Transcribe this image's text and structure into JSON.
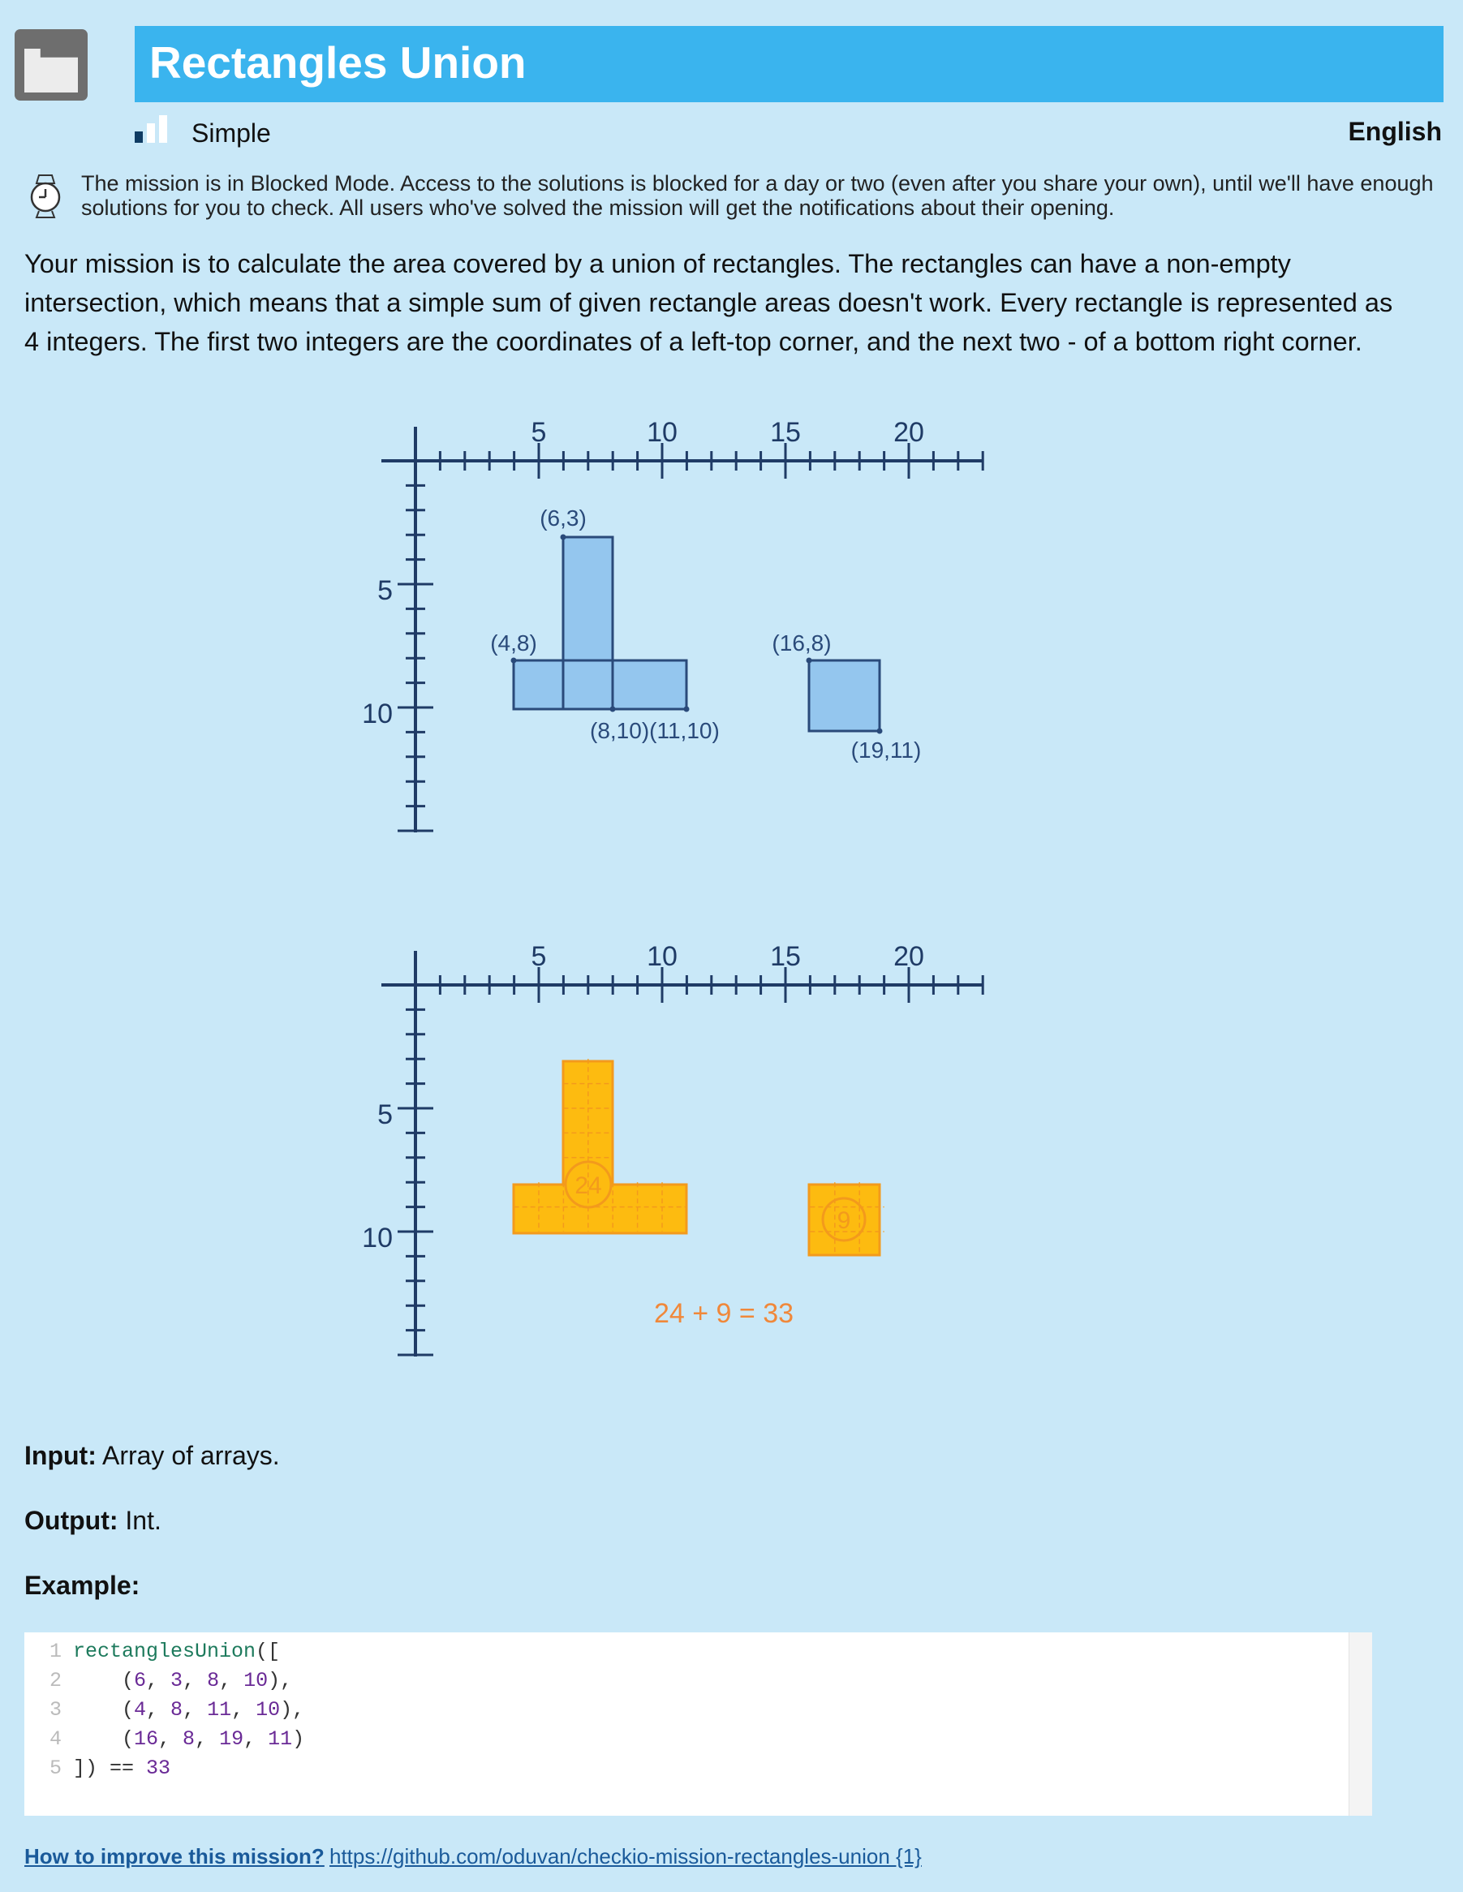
{
  "header": {
    "title": "Rectangles Union",
    "difficulty": "Simple",
    "language": "English",
    "accent_color": "#3ab4ee"
  },
  "notice": {
    "icon": "stopwatch-icon",
    "text": "The mission is in Blocked Mode. Access to the solutions is blocked for a day or two (even after you share your own), until we'll have enough solutions for you to check. All users who've solved the mission will get the notifications about their opening."
  },
  "description": "Your mission is to calculate the area covered by a union of rectangles. The rectangles can have a non-empty intersection, which means that a simple sum of given rectangle areas doesn't work. Every rectangle is represented as 4 integers. The first two integers are the coordinates of a left-top corner, and the next two - of a bottom right corner.",
  "illustration": {
    "x_ticks": [
      "5",
      "10",
      "15",
      "20"
    ],
    "y_ticks": [
      "5",
      "10"
    ],
    "rectangles": [
      {
        "x1": 6,
        "y1": 3,
        "x2": 8,
        "y2": 10
      },
      {
        "x1": 4,
        "y1": 8,
        "x2": 11,
        "y2": 10
      },
      {
        "x1": 16,
        "y1": 8,
        "x2": 19,
        "y2": 11
      }
    ],
    "point_labels": [
      "(6,3)",
      "(4,8)",
      "(8,10)(11,10)",
      "(16,8)",
      "(19,11)"
    ],
    "area_labels": [
      "24",
      "9"
    ],
    "sum_text": "24 + 9 = 33",
    "colors": {
      "first": "#94c6ee",
      "second": "#fdbb10"
    }
  },
  "io": {
    "input_label": "Input:",
    "input_text": "Array of arrays.",
    "output_label": "Output:",
    "output_text": "Int.",
    "example_label": "Example:"
  },
  "code": {
    "line_numbers": [
      "1",
      "2",
      "3",
      "4",
      "5"
    ],
    "fn_name": "rectanglesUnion",
    "lines": [
      [
        {
          "t": "fn",
          "v": "rectanglesUnion"
        },
        {
          "t": "p",
          "v": "(["
        }
      ],
      [
        {
          "t": "p",
          "v": "    ("
        },
        {
          "t": "n",
          "v": "6"
        },
        {
          "t": "p",
          "v": ", "
        },
        {
          "t": "n",
          "v": "3"
        },
        {
          "t": "p",
          "v": ", "
        },
        {
          "t": "n",
          "v": "8"
        },
        {
          "t": "p",
          "v": ", "
        },
        {
          "t": "n",
          "v": "10"
        },
        {
          "t": "p",
          "v": "),"
        }
      ],
      [
        {
          "t": "p",
          "v": "    ("
        },
        {
          "t": "n",
          "v": "4"
        },
        {
          "t": "p",
          "v": ", "
        },
        {
          "t": "n",
          "v": "8"
        },
        {
          "t": "p",
          "v": ", "
        },
        {
          "t": "n",
          "v": "11"
        },
        {
          "t": "p",
          "v": ", "
        },
        {
          "t": "n",
          "v": "10"
        },
        {
          "t": "p",
          "v": "),"
        }
      ],
      [
        {
          "t": "p",
          "v": "    ("
        },
        {
          "t": "n",
          "v": "16"
        },
        {
          "t": "p",
          "v": ", "
        },
        {
          "t": "n",
          "v": "8"
        },
        {
          "t": "p",
          "v": ", "
        },
        {
          "t": "n",
          "v": "19"
        },
        {
          "t": "p",
          "v": ", "
        },
        {
          "t": "n",
          "v": "11"
        },
        {
          "t": "p",
          "v": ")"
        }
      ],
      [
        {
          "t": "p",
          "v": "]) == "
        },
        {
          "t": "n",
          "v": "33"
        }
      ]
    ]
  },
  "footer": {
    "label": "How to improve this mission?",
    "link_text": "https://github.com/oduvan/checkio-mission-rectangles-union {1}"
  }
}
